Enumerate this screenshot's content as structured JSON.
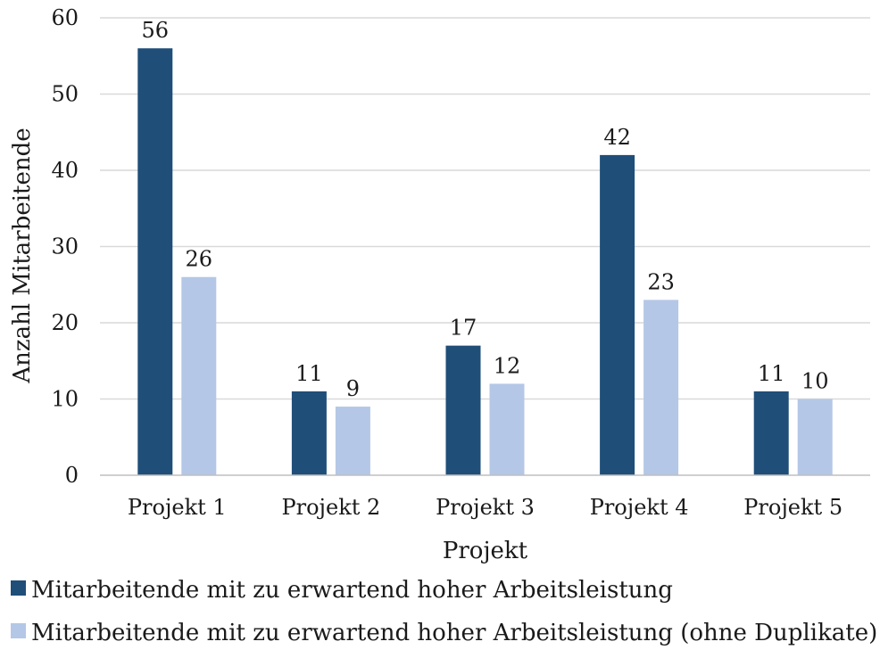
{
  "chart_data": {
    "type": "bar",
    "title": "",
    "xlabel": "Projekt",
    "ylabel": "Anzahl Mitarbeitende",
    "ylim": [
      0,
      60
    ],
    "yticks": [
      0,
      10,
      20,
      30,
      40,
      50,
      60
    ],
    "grid": true,
    "legend_position": "bottom",
    "categories": [
      "Projekt 1",
      "Projekt 2",
      "Projekt 3",
      "Projekt 4",
      "Projekt 5"
    ],
    "series": [
      {
        "name": "Mitarbeitende mit zu erwartend hoher Arbeitsleistung",
        "color": "#1f4e79",
        "values": [
          56,
          11,
          17,
          42,
          11
        ]
      },
      {
        "name": "Mitarbeitende mit zu erwartend hoher Arbeitsleistung (ohne Duplikate)",
        "color": "#b4c7e7",
        "values": [
          26,
          9,
          12,
          23,
          10
        ]
      }
    ]
  }
}
